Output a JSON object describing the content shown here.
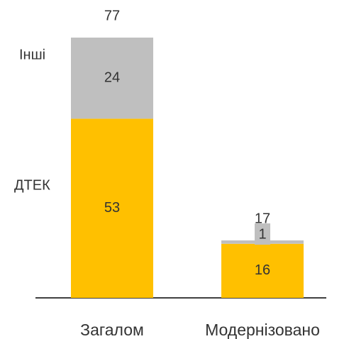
{
  "chart_data": {
    "type": "stacked_bar",
    "categories": [
      "Загалом",
      "Модернізовано"
    ],
    "series": [
      {
        "name": "ДТЕК",
        "color": "#FFC000",
        "values": [
          53,
          16
        ]
      },
      {
        "name": "Інші",
        "color": "#BFBFBF",
        "values": [
          24,
          1
        ]
      }
    ],
    "totals": [
      77,
      17
    ]
  }
}
